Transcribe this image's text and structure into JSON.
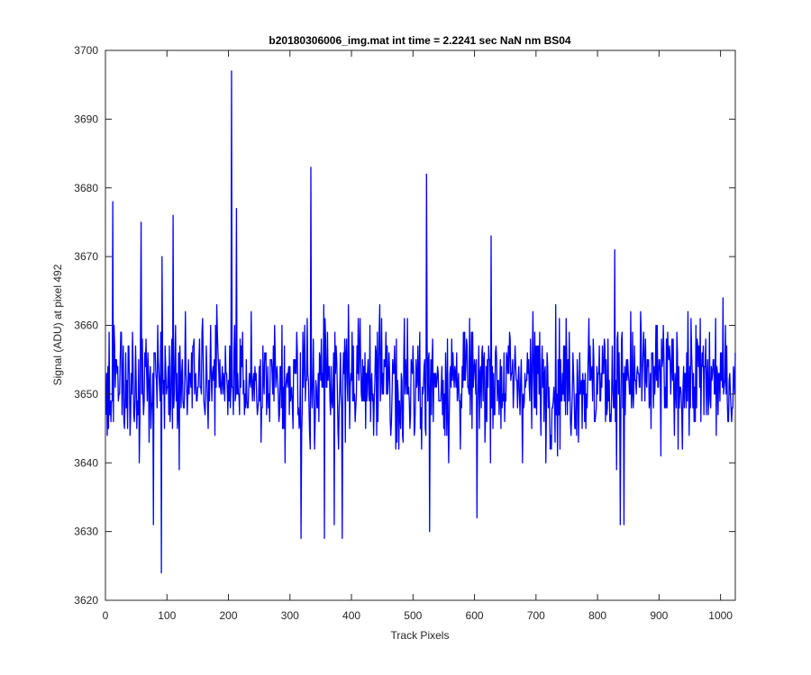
{
  "chart_data": {
    "type": "line",
    "title": "b20180306006_img.mat int time = 2.2241 sec  NaN nm BS04",
    "xlabel": "Track Pixels",
    "ylabel": "Signal (ADU) at pixel 492",
    "xlim": [
      0,
      1024
    ],
    "ylim": [
      3620,
      3700
    ],
    "xticks": [
      0,
      100,
      200,
      300,
      400,
      500,
      600,
      700,
      800,
      900,
      1000
    ],
    "yticks": [
      3620,
      3630,
      3640,
      3650,
      3660,
      3670,
      3680,
      3690,
      3700
    ],
    "grid": false,
    "legend": "none",
    "series": [
      {
        "color": "#0000ff",
        "x_start": 1,
        "x_step": 1,
        "mean": 3652,
        "values_note_markers": {
          "peaks": [
            [
              12,
              3678
            ],
            [
              58,
              3675
            ],
            [
              92,
              3670
            ],
            [
              110,
              3676
            ],
            [
              205,
              3697
            ],
            [
              213,
              3677
            ],
            [
              334,
              3683
            ],
            [
              522,
              3682
            ],
            [
              627,
              3673
            ],
            [
              828,
              3671
            ]
          ],
          "troughs": [
            [
              78,
              3631
            ],
            [
              91,
              3624
            ],
            [
              318,
              3629
            ],
            [
              356,
              3629
            ],
            [
              372,
              3631
            ],
            [
              385,
              3629
            ],
            [
              527,
              3630
            ],
            [
              604,
              3632
            ],
            [
              837,
              3631
            ],
            [
              843,
              3631
            ]
          ]
        }
      }
    ]
  }
}
